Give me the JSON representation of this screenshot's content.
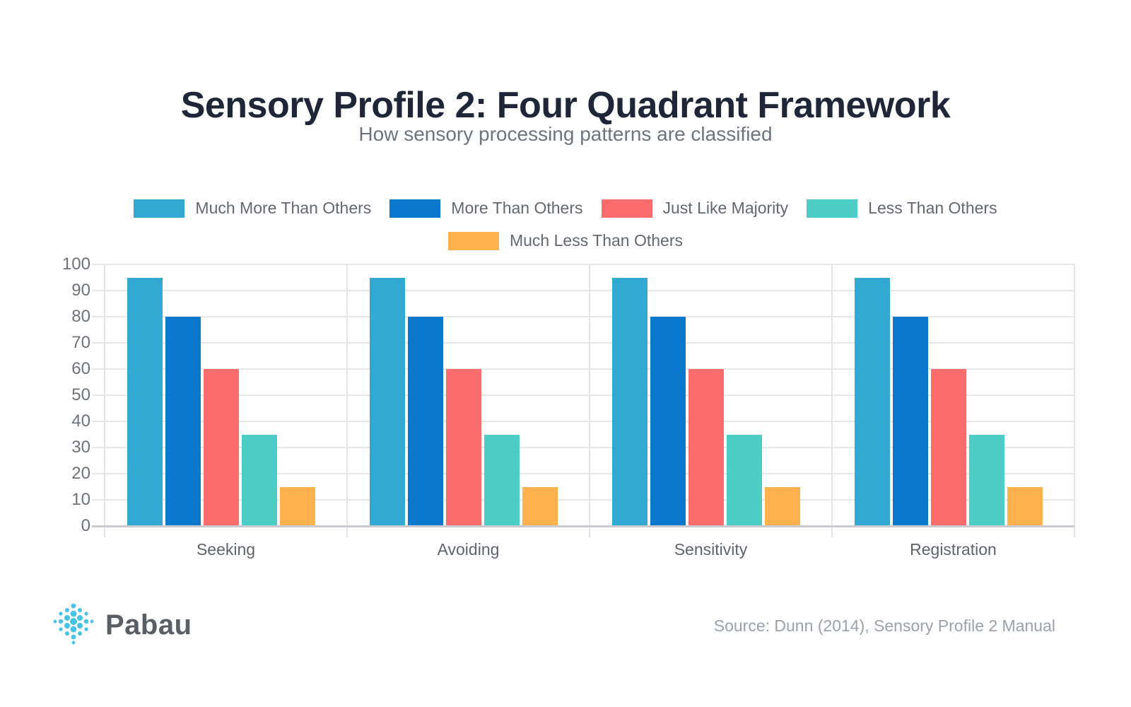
{
  "header": {
    "title": "Sensory Profile 2: Four Quadrant Framework",
    "subtitle": "How sensory processing patterns are classified"
  },
  "chart_data": {
    "type": "bar",
    "title": "Sensory Profile 2: Four Quadrant Framework",
    "subtitle": "How sensory processing patterns are classified",
    "categories": [
      "Seeking",
      "Avoiding",
      "Sensitivity",
      "Registration"
    ],
    "series": [
      {
        "name": "Much More Than Others",
        "color": "#32A9D2",
        "values": [
          95,
          95,
          95,
          95
        ]
      },
      {
        "name": "More Than Others",
        "color": "#0A78CD",
        "values": [
          80,
          80,
          80,
          80
        ]
      },
      {
        "name": "Just Like Majority",
        "color": "#FB6D6D",
        "values": [
          60,
          60,
          60,
          60
        ]
      },
      {
        "name": "Less Than Others",
        "color": "#4CCDC5",
        "values": [
          35,
          35,
          35,
          35
        ]
      },
      {
        "name": "Much Less Than Others",
        "color": "#FEB14C",
        "values": [
          15,
          15,
          15,
          15
        ]
      }
    ],
    "xlabel": "",
    "ylabel": "",
    "ylim": [
      0,
      100
    ],
    "yticks": [
      0,
      10,
      20,
      30,
      40,
      50,
      60,
      70,
      80,
      90,
      100
    ],
    "grid": true,
    "legend_position": "top"
  },
  "footer": {
    "logo_text": "Pabau",
    "logo_color": "#47C3E8",
    "source": "Source: Dunn (2014), Sensory Profile 2 Manual"
  }
}
